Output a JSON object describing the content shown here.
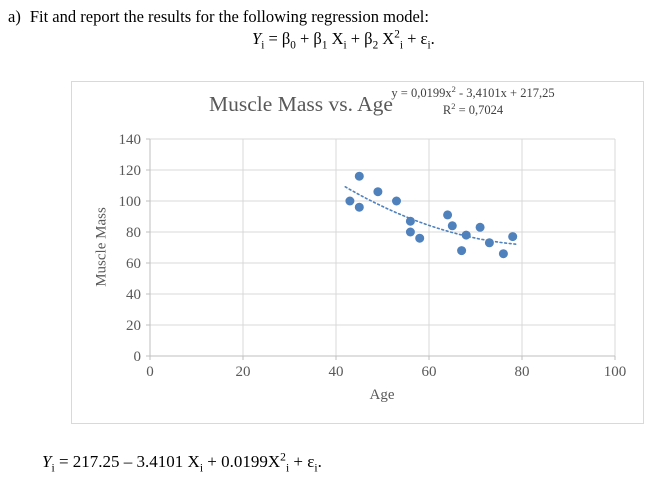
{
  "page": {
    "item_label": "a)",
    "prompt": "Fit and report the results for the following regression model:",
    "model_equation": "Y_{i} = β_{0} + β_{1} X_{i} + β_{2} X^{2}_{i} + ε_{i}.",
    "result_equation": "Y_{i} = 217.25 – 3.4101 X_{i} + 0.0199X^{2}_{i} + ε_{i}."
  },
  "chart_data": {
    "type": "scatter",
    "title": "Muscle Mass vs. Age",
    "xlabel": "Age",
    "ylabel": "Muscle Mass",
    "xlim": [
      0,
      100
    ],
    "ylim": [
      0,
      140
    ],
    "xticks": [
      0,
      20,
      40,
      60,
      80,
      100
    ],
    "yticks": [
      0,
      20,
      40,
      60,
      80,
      100,
      120,
      140
    ],
    "grid": true,
    "legend": "none",
    "series": [
      {
        "name": "Muscle Mass",
        "points": [
          [
            43,
            100
          ],
          [
            45,
            116
          ],
          [
            45,
            96
          ],
          [
            49,
            106
          ],
          [
            53,
            100
          ],
          [
            56,
            87
          ],
          [
            56,
            80
          ],
          [
            58,
            76
          ],
          [
            64,
            91
          ],
          [
            65,
            84
          ],
          [
            67,
            68
          ],
          [
            68,
            78
          ],
          [
            71,
            83
          ],
          [
            73,
            73
          ],
          [
            76,
            66
          ],
          [
            78,
            77
          ]
        ]
      }
    ],
    "trendline": {
      "type": "polynomial",
      "degree": 2,
      "coefficients": {
        "x2": 0.0199,
        "x": -3.4101,
        "intercept": 217.25
      },
      "r_squared": 0.7024,
      "x_range": [
        42,
        79
      ],
      "equation_label": "y = 0,0199x^{2} - 3,4101x + 217,25",
      "r2_label": "R^{2} = 0,7024"
    },
    "colors": {
      "point": "#4f81bd",
      "trendline": "#4f81bd",
      "grid": "#d9d9d9",
      "axis": "#bfbfbf",
      "tick_text": "#595959",
      "title_text": "#595959",
      "equation_text": "#404040"
    }
  }
}
